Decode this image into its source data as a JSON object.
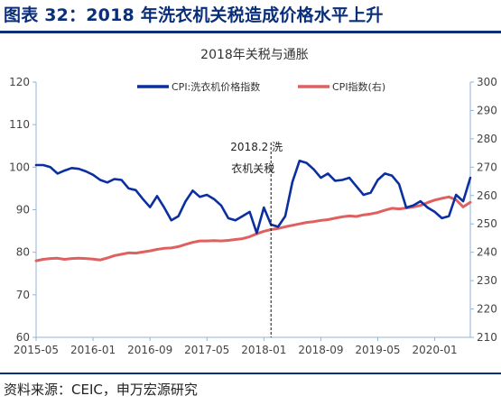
{
  "figure": {
    "title": "图表 32：2018 年洗衣机关税造成价格水平上升",
    "source": "资料来源：CEIC，申万宏源研究"
  },
  "colors": {
    "brand": "#0a2f7a",
    "series_washer": "#0b2fa0",
    "series_cpi": "#e06060",
    "axis": "#8fb6d8"
  },
  "chart_data": {
    "type": "line",
    "title": "2018年关税与通胀",
    "x_ticks": [
      "2015-05",
      "2016-01",
      "2016-09",
      "2017-05",
      "2018-01",
      "2018-09",
      "2019-05",
      "2020-01"
    ],
    "y_left": {
      "lim": [
        60,
        120
      ],
      "ticks": [
        "60",
        "70",
        "80",
        "90",
        "100",
        "110",
        "120"
      ]
    },
    "y_right": {
      "lim": [
        210,
        300
      ],
      "ticks": [
        "210",
        "220",
        "230",
        "240",
        "250",
        "260",
        "270",
        "280",
        "290",
        "300"
      ]
    },
    "legend_position": "top",
    "annotation": {
      "date": "2018-02",
      "label_line1": "2018.2 洗",
      "label_line2": "衣机关税"
    },
    "series": [
      {
        "name": "CPI:洗衣机价格指数",
        "axis": "left",
        "color": "#0b2fa0",
        "points": [
          [
            "2015-05",
            100.5
          ],
          [
            "2015-06",
            100.5
          ],
          [
            "2015-07",
            100.0
          ],
          [
            "2015-08",
            98.5
          ],
          [
            "2015-09",
            99.2
          ],
          [
            "2015-10",
            99.8
          ],
          [
            "2015-11",
            99.6
          ],
          [
            "2015-12",
            99.0
          ],
          [
            "2016-01",
            98.2
          ],
          [
            "2016-02",
            97.0
          ],
          [
            "2016-03",
            96.4
          ],
          [
            "2016-04",
            97.2
          ],
          [
            "2016-05",
            97.0
          ],
          [
            "2016-06",
            95.0
          ],
          [
            "2016-07",
            94.6
          ],
          [
            "2016-08",
            92.5
          ],
          [
            "2016-09",
            90.6
          ],
          [
            "2016-10",
            93.2
          ],
          [
            "2016-11",
            90.5
          ],
          [
            "2016-12",
            87.5
          ],
          [
            "2017-01",
            88.5
          ],
          [
            "2017-02",
            92.0
          ],
          [
            "2017-03",
            94.5
          ],
          [
            "2017-04",
            93.0
          ],
          [
            "2017-05",
            93.5
          ],
          [
            "2017-06",
            92.5
          ],
          [
            "2017-07",
            91.0
          ],
          [
            "2017-08",
            88.0
          ],
          [
            "2017-09",
            87.5
          ],
          [
            "2017-10",
            88.5
          ],
          [
            "2017-11",
            89.5
          ],
          [
            "2017-12",
            84.5
          ],
          [
            "2018-01",
            90.5
          ],
          [
            "2018-02",
            86.5
          ],
          [
            "2018-03",
            86.0
          ],
          [
            "2018-04",
            88.5
          ],
          [
            "2018-05",
            96.5
          ],
          [
            "2018-06",
            101.5
          ],
          [
            "2018-07",
            101.0
          ],
          [
            "2018-08",
            99.5
          ],
          [
            "2018-09",
            97.5
          ],
          [
            "2018-10",
            98.5
          ],
          [
            "2018-11",
            96.8
          ],
          [
            "2018-12",
            97.0
          ],
          [
            "2019-01",
            97.5
          ],
          [
            "2019-02",
            95.5
          ],
          [
            "2019-03",
            93.5
          ],
          [
            "2019-04",
            94.0
          ],
          [
            "2019-05",
            97.0
          ],
          [
            "2019-06",
            98.5
          ],
          [
            "2019-07",
            98.0
          ],
          [
            "2019-08",
            96.0
          ],
          [
            "2019-09",
            90.5
          ],
          [
            "2019-10",
            91.0
          ],
          [
            "2019-11",
            92.0
          ],
          [
            "2019-12",
            90.5
          ],
          [
            "2020-01",
            89.5
          ],
          [
            "2020-02",
            88.0
          ],
          [
            "2020-03",
            88.5
          ],
          [
            "2020-04",
            93.5
          ],
          [
            "2020-05",
            92.0
          ],
          [
            "2020-06",
            97.5
          ]
        ]
      },
      {
        "name": "CPI指数(右)",
        "axis": "right",
        "color": "#e06060",
        "points": [
          [
            "2015-05",
            237.0
          ],
          [
            "2015-06",
            237.5
          ],
          [
            "2015-07",
            237.8
          ],
          [
            "2015-08",
            237.9
          ],
          [
            "2015-09",
            237.5
          ],
          [
            "2015-10",
            237.8
          ],
          [
            "2015-11",
            237.9
          ],
          [
            "2015-12",
            237.8
          ],
          [
            "2016-01",
            237.6
          ],
          [
            "2016-02",
            237.3
          ],
          [
            "2016-03",
            238.0
          ],
          [
            "2016-04",
            238.8
          ],
          [
            "2016-05",
            239.3
          ],
          [
            "2016-06",
            239.8
          ],
          [
            "2016-07",
            239.7
          ],
          [
            "2016-08",
            240.1
          ],
          [
            "2016-09",
            240.5
          ],
          [
            "2016-10",
            241.0
          ],
          [
            "2016-11",
            241.4
          ],
          [
            "2016-12",
            241.5
          ],
          [
            "2017-01",
            242.0
          ],
          [
            "2017-02",
            242.8
          ],
          [
            "2017-03",
            243.5
          ],
          [
            "2017-04",
            244.0
          ],
          [
            "2017-05",
            244.0
          ],
          [
            "2017-06",
            244.1
          ],
          [
            "2017-07",
            244.0
          ],
          [
            "2017-08",
            244.2
          ],
          [
            "2017-09",
            244.5
          ],
          [
            "2017-10",
            244.8
          ],
          [
            "2017-11",
            245.5
          ],
          [
            "2017-12",
            246.5
          ],
          [
            "2018-01",
            247.4
          ],
          [
            "2018-02",
            248.0
          ],
          [
            "2018-03",
            248.4
          ],
          [
            "2018-04",
            249.0
          ],
          [
            "2018-05",
            249.5
          ],
          [
            "2018-06",
            250.0
          ],
          [
            "2018-07",
            250.5
          ],
          [
            "2018-08",
            250.8
          ],
          [
            "2018-09",
            251.2
          ],
          [
            "2018-10",
            251.5
          ],
          [
            "2018-11",
            252.0
          ],
          [
            "2018-12",
            252.5
          ],
          [
            "2019-01",
            252.8
          ],
          [
            "2019-02",
            252.6
          ],
          [
            "2019-03",
            253.2
          ],
          [
            "2019-04",
            253.5
          ],
          [
            "2019-05",
            254.0
          ],
          [
            "2019-06",
            254.8
          ],
          [
            "2019-07",
            255.5
          ],
          [
            "2019-08",
            255.3
          ],
          [
            "2019-09",
            255.6
          ],
          [
            "2019-10",
            256.0
          ],
          [
            "2019-11",
            256.5
          ],
          [
            "2019-12",
            257.5
          ],
          [
            "2020-01",
            258.4
          ],
          [
            "2020-02",
            259.0
          ],
          [
            "2020-03",
            259.5
          ],
          [
            "2020-04",
            258.5
          ],
          [
            "2020-05",
            256.0
          ],
          [
            "2020-06",
            257.6
          ]
        ]
      }
    ]
  }
}
